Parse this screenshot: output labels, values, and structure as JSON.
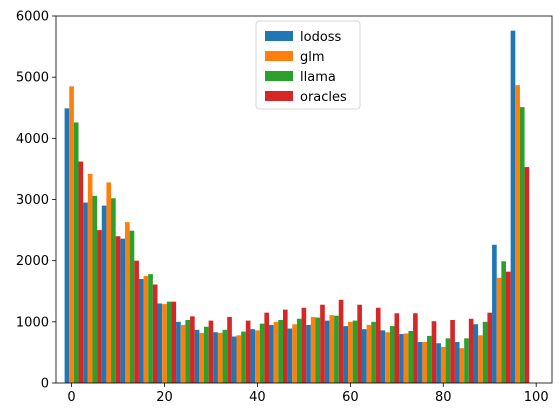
{
  "chart_data": {
    "type": "bar",
    "title": "",
    "xlabel": "",
    "ylabel": "",
    "xlim": [
      -3.35,
      103.4
    ],
    "ylim": [
      0,
      6000
    ],
    "xticks": [
      0,
      20,
      40,
      60,
      80,
      100
    ],
    "yticks": [
      0,
      1000,
      2000,
      3000,
      4000,
      5000,
      6000
    ],
    "grid": false,
    "legend_position": "upper-center",
    "x": [
      0.5,
      4.5,
      8.5,
      12.5,
      16.5,
      20.5,
      24.5,
      28.5,
      32.5,
      36.5,
      40.5,
      44.5,
      48.5,
      52.5,
      56.5,
      60.5,
      64.5,
      68.5,
      72.5,
      76.5,
      80.5,
      84.5,
      88.5,
      92.5,
      96.5
    ],
    "series": [
      {
        "name": "lodoss",
        "color": "#1f77b4",
        "values": [
          4490,
          2950,
          2900,
          2360,
          1700,
          1300,
          1000,
          870,
          830,
          760,
          880,
          950,
          890,
          950,
          1020,
          930,
          880,
          860,
          800,
          670,
          650,
          670,
          960,
          2260,
          5760
        ]
      },
      {
        "name": "glm",
        "color": "#ff7f0e",
        "values": [
          4850,
          3420,
          3280,
          2630,
          1750,
          1290,
          950,
          820,
          820,
          780,
          860,
          1000,
          960,
          1080,
          1110,
          1000,
          950,
          830,
          810,
          670,
          590,
          570,
          780,
          1720,
          4870
        ]
      },
      {
        "name": "llama",
        "color": "#2ca02c",
        "values": [
          4260,
          3060,
          3020,
          2490,
          1780,
          1330,
          1030,
          920,
          870,
          840,
          970,
          1030,
          1050,
          1070,
          1100,
          1020,
          1000,
          930,
          850,
          770,
          730,
          730,
          1000,
          1990,
          4510
        ]
      },
      {
        "name": "oracles",
        "color": "#d62728",
        "values": [
          3620,
          2500,
          2400,
          2000,
          1610,
          1330,
          1090,
          1020,
          1080,
          1020,
          1150,
          1200,
          1230,
          1280,
          1360,
          1280,
          1230,
          1140,
          1140,
          1010,
          1030,
          1050,
          1150,
          1820,
          3530
        ]
      }
    ]
  }
}
